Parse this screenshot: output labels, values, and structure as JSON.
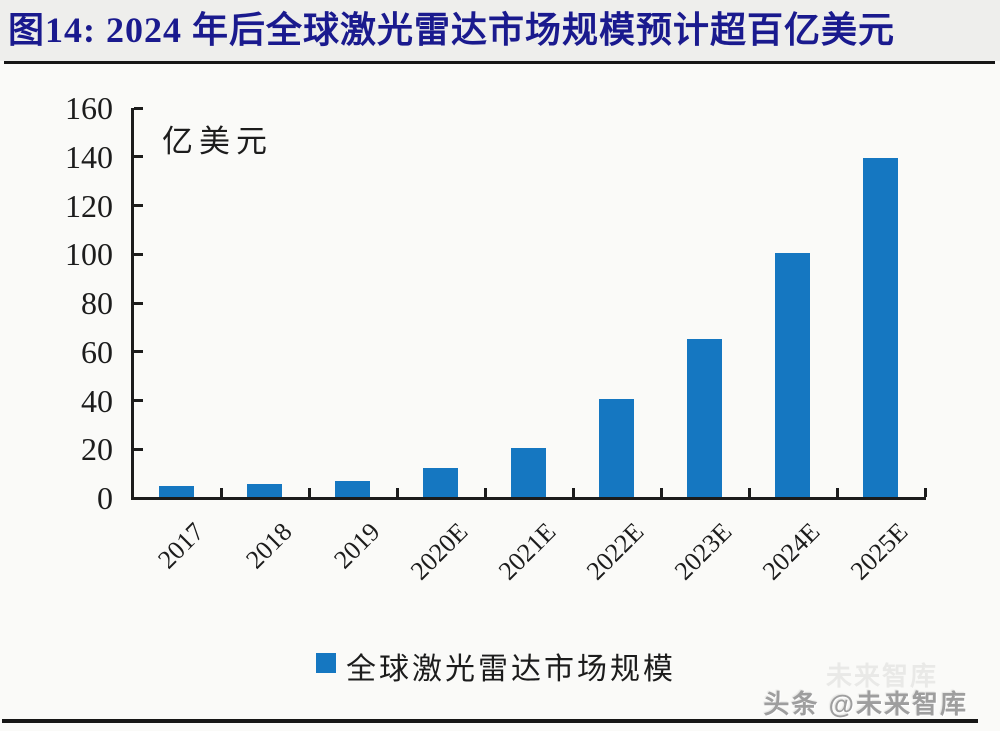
{
  "title": "图14:  2024 年后全球激光雷达市场规模预计超百亿美元",
  "colors": {
    "bar_blue": "#1577c1",
    "title_navy": "#1a1a8e",
    "axis_black": "#1c1c1c",
    "watermark_gray": "#9e9e9e"
  },
  "chart_data": {
    "type": "bar",
    "title": "2024 年后全球激光雷达市场规模预计超百亿美元",
    "unit_label": "亿美元",
    "categories": [
      "2017",
      "2018",
      "2019",
      "2020E",
      "2021E",
      "2022E",
      "2023E",
      "2024E",
      "2025E"
    ],
    "values": [
      4.5,
      5.5,
      6.5,
      12,
      20,
      40,
      65,
      100,
      139
    ],
    "xlabel": "",
    "ylabel": "亿美元",
    "ylim": [
      0,
      160
    ],
    "yticks": [
      0,
      20,
      40,
      60,
      80,
      100,
      120,
      140,
      160
    ],
    "grid": false,
    "legend_position": "bottom",
    "legend": [
      {
        "label": "全球激光雷达市场规模",
        "color": "#1577c1"
      }
    ]
  },
  "watermark": {
    "text": "头条 @未来智库",
    "ghost": "未来智库"
  }
}
